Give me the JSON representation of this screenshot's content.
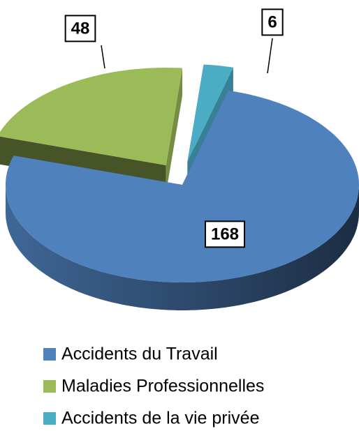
{
  "chart_data": {
    "type": "pie3d",
    "categories": [
      "Accidents du Travail",
      "Maladies Professionnelles",
      "Accidents de la vie privée"
    ],
    "values": [
      168,
      48,
      6
    ],
    "colors": [
      "#4f81bd",
      "#9bbb59",
      "#4bacc6"
    ],
    "legend": "bottom"
  }
}
